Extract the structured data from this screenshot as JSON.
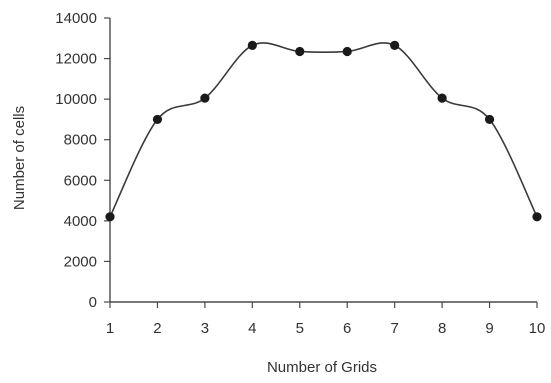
{
  "chart_data": {
    "type": "line",
    "title": "",
    "xlabel": "Number of Grids",
    "ylabel": "Number of cells",
    "x": [
      1,
      2,
      3,
      4,
      5,
      6,
      7,
      8,
      9,
      10
    ],
    "series": [
      {
        "values": [
          4200,
          9000,
          10050,
          12650,
          12350,
          12350,
          12650,
          10050,
          9000,
          4200
        ]
      }
    ],
    "xlim": [
      1,
      10
    ],
    "ylim": [
      0,
      14000
    ],
    "xticks": [
      1,
      2,
      3,
      4,
      5,
      6,
      7,
      8,
      9,
      10
    ],
    "yticks": [
      0,
      2000,
      4000,
      6000,
      8000,
      10000,
      12000,
      14000
    ],
    "grid": false,
    "line_style": "smooth",
    "marker": "filled-circle",
    "color": "#1a1a1a"
  }
}
